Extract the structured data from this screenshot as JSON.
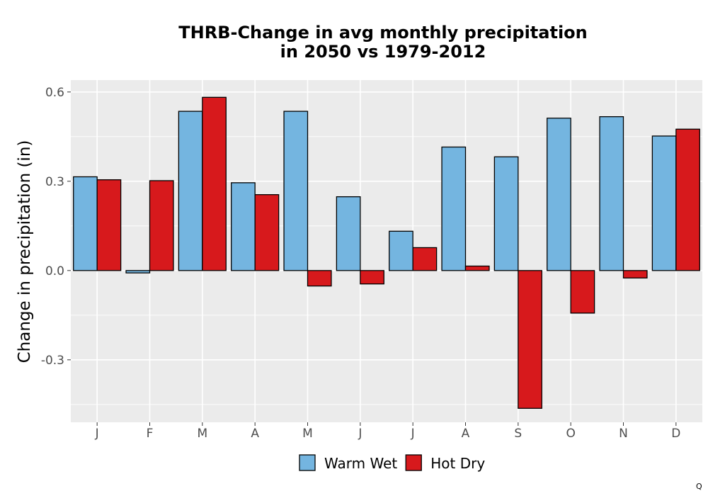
{
  "chart_data": {
    "type": "bar",
    "title_line1": "THRB-Change in avg monthly precipitation",
    "title_line2": "in 2050 vs 1979-2012",
    "xlabel": "",
    "ylabel": "Change in precipitation (in)",
    "categories": [
      "J",
      "F",
      "M",
      "A",
      "M",
      "J",
      "J",
      "A",
      "S",
      "O",
      "N",
      "D"
    ],
    "yticks": [
      "-0.3",
      "0.0",
      "0.3",
      "0.6"
    ],
    "ylim": [
      -0.51,
      0.64
    ],
    "grid": true,
    "legend_position": "bottom",
    "series": [
      {
        "name": "Warm Wet",
        "color": "#74b5e0",
        "values": [
          0.315,
          -0.008,
          0.535,
          0.295,
          0.535,
          0.248,
          0.132,
          0.415,
          0.382,
          0.512,
          0.517,
          0.452
        ]
      },
      {
        "name": "Hot Dry",
        "color": "#d7191c",
        "values": [
          0.305,
          0.302,
          0.582,
          0.255,
          -0.052,
          -0.045,
          0.077,
          0.015,
          -0.463,
          -0.143,
          -0.025,
          0.475
        ]
      }
    ]
  },
  "corner_label": "Q"
}
